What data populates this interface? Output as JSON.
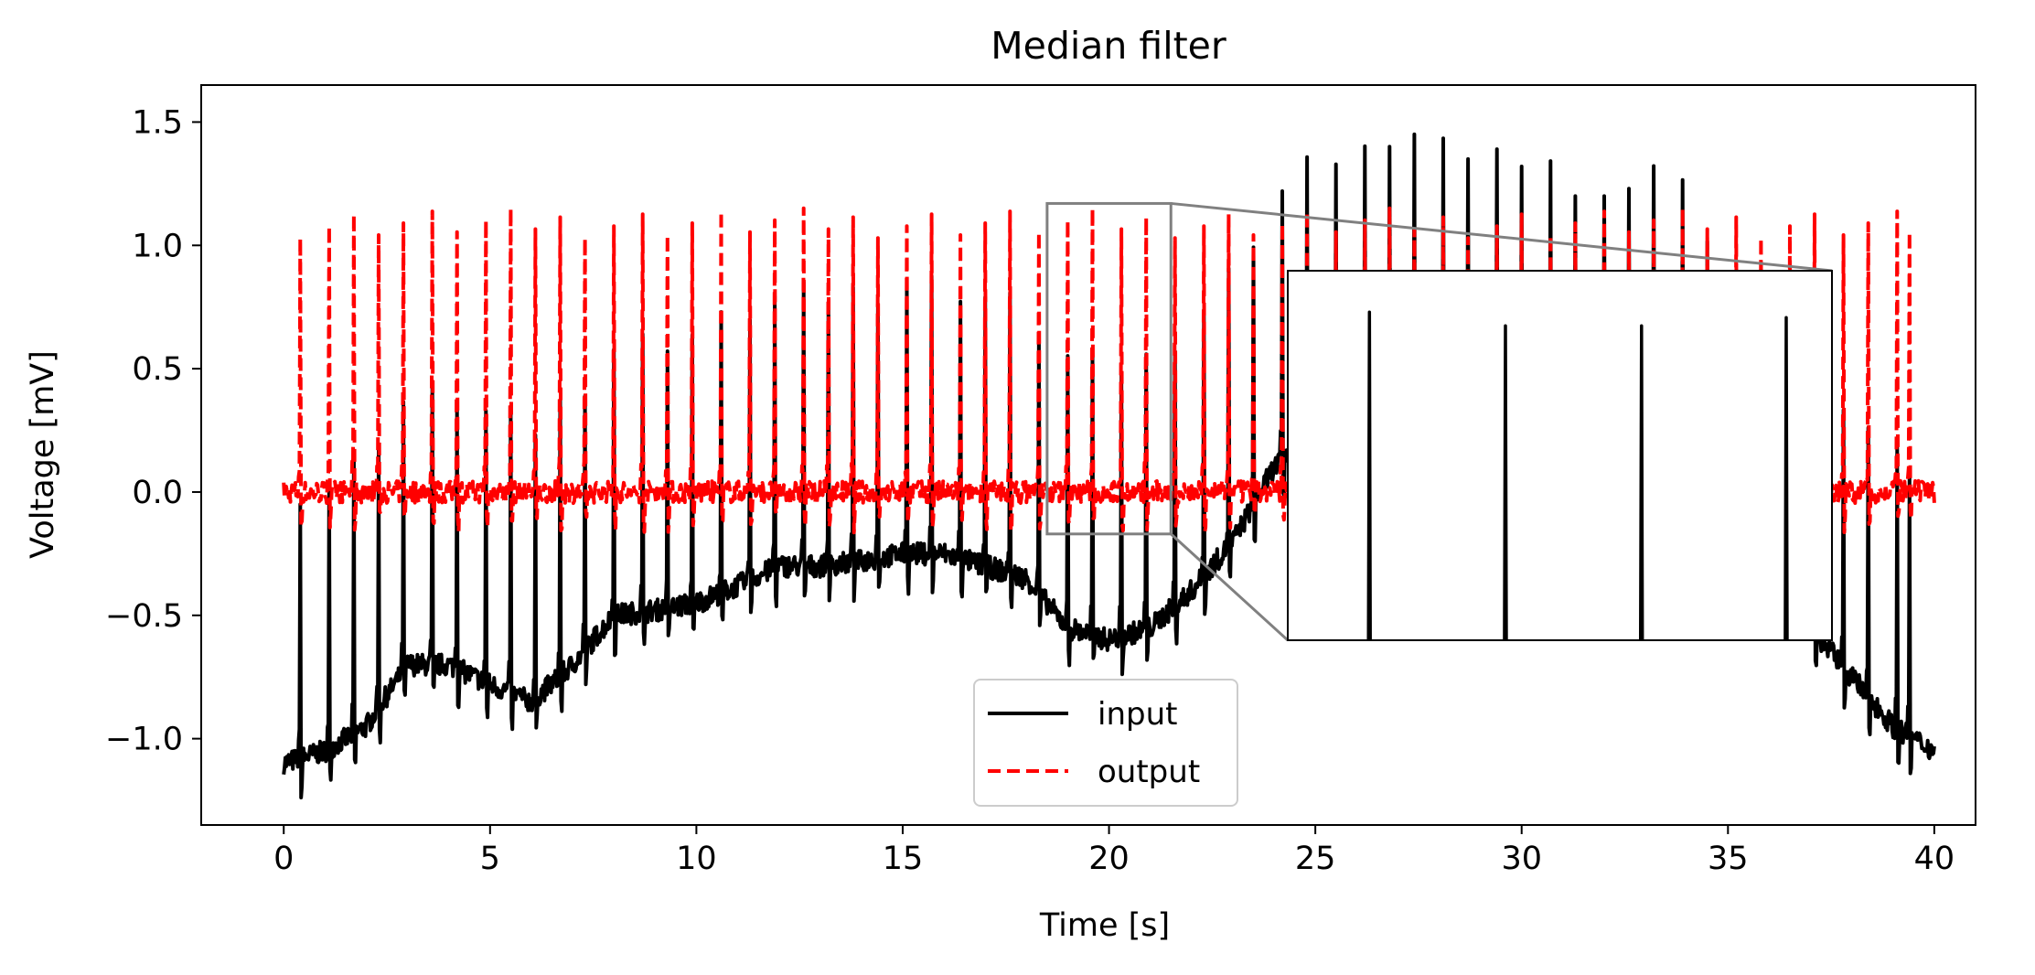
{
  "chart_data": {
    "type": "line",
    "title": "Median filter",
    "xlabel": "Time [s]",
    "ylabel": "Voltage [mV]",
    "xlim": [
      -2,
      41
    ],
    "ylim": [
      -1.35,
      1.65
    ],
    "xticks": [
      0,
      5,
      10,
      15,
      20,
      25,
      30,
      35,
      40
    ],
    "xtick_labels": [
      "0",
      "5",
      "10",
      "15",
      "20",
      "25",
      "30",
      "35",
      "40"
    ],
    "yticks": [
      -1.0,
      -0.5,
      0.0,
      0.5,
      1.0,
      1.5
    ],
    "ytick_labels": [
      "−1.0",
      "−0.5",
      "0.0",
      "0.5",
      "1.0",
      "1.5"
    ],
    "grid": false,
    "legend": {
      "position": "lower center",
      "entries": [
        "input",
        "output"
      ]
    },
    "series": [
      {
        "name": "input",
        "color": "#000000",
        "style": "solid",
        "baseline": {
          "x": [
            0,
            1,
            2,
            3,
            4,
            5,
            6,
            7,
            8,
            9,
            10,
            11,
            12,
            13,
            14,
            15,
            16,
            17,
            18,
            19,
            20,
            21,
            22,
            23,
            24,
            25,
            26,
            27,
            28,
            29,
            30,
            31,
            32,
            33,
            34,
            35,
            36,
            37,
            38,
            39,
            40
          ],
          "y": [
            -1.1,
            -1.05,
            -0.95,
            -0.7,
            -0.7,
            -0.78,
            -0.85,
            -0.7,
            -0.5,
            -0.48,
            -0.45,
            -0.38,
            -0.3,
            -0.3,
            -0.28,
            -0.25,
            -0.25,
            -0.3,
            -0.35,
            -0.55,
            -0.6,
            -0.55,
            -0.4,
            -0.2,
            0.1,
            0.25,
            0.3,
            0.3,
            0.32,
            0.32,
            0.3,
            0.3,
            0.28,
            0.25,
            0.1,
            -0.2,
            -0.4,
            -0.55,
            -0.75,
            -0.95,
            -1.05
          ]
        },
        "spike_peaks": [
          {
            "t": 24.7,
            "v": 1.28
          },
          {
            "t": 25.4,
            "v": 1.52
          },
          {
            "t": 26.1,
            "v": 1.45
          },
          {
            "t": 26.8,
            "v": 1.4
          },
          {
            "t": 27.4,
            "v": 1.45
          },
          {
            "t": 28.0,
            "v": 1.5
          },
          {
            "t": 28.6,
            "v": 1.52
          },
          {
            "t": 29.3,
            "v": 1.38
          },
          {
            "t": 30.0,
            "v": 1.32
          },
          {
            "t": 30.6,
            "v": 1.25
          },
          {
            "t": 31.3,
            "v": 1.2
          },
          {
            "t": 32.0,
            "v": 1.2
          },
          {
            "t": 32.6,
            "v": 1.23
          },
          {
            "t": 33.3,
            "v": 1.19
          },
          {
            "t": 34.0,
            "v": 1.12
          },
          {
            "t": 34.6,
            "v": 1.1
          }
        ]
      },
      {
        "name": "output",
        "color": "#ff0000",
        "style": "dashed",
        "spike_times": [
          0.4,
          1.1,
          1.7,
          2.3,
          2.9,
          3.6,
          4.2,
          4.9,
          5.5,
          6.1,
          6.7,
          7.3,
          8.0,
          8.7,
          9.3,
          9.9,
          10.6,
          11.3,
          11.9,
          12.6,
          13.2,
          13.8,
          14.4,
          15.1,
          15.7,
          16.4,
          17.0,
          17.6,
          18.3,
          19.0,
          19.6,
          20.3,
          20.9,
          21.6,
          22.3,
          22.9,
          23.5,
          24.2,
          24.8,
          25.5,
          26.2,
          26.8,
          27.4,
          28.1,
          28.7,
          29.4,
          30.0,
          30.7,
          31.3,
          32.0,
          32.6,
          33.2,
          33.9,
          34.5,
          35.2,
          35.8,
          36.5,
          37.1,
          37.8,
          38.4,
          39.1,
          39.4
        ],
        "spike_amplitude_range": [
          1.03,
          1.15
        ],
        "baseline": 0.0
      }
    ],
    "inset": {
      "source_xlim": [
        18.5,
        21.5
      ],
      "source_ylim": [
        -0.17,
        1.17
      ],
      "series": [
        "input",
        "output"
      ],
      "input_baseline": -0.35,
      "spike_peaks": [
        {
          "t": 18.95,
          "v": 1.02
        },
        {
          "t": 19.7,
          "v": 0.97
        },
        {
          "t": 20.45,
          "v": 0.97
        },
        {
          "t": 21.25,
          "v": 1.0
        }
      ]
    }
  }
}
